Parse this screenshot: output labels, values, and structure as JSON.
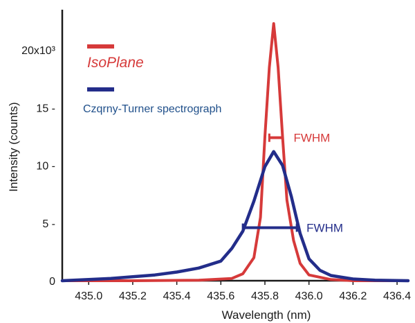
{
  "chart_data": {
    "type": "line",
    "title": "",
    "xlabel": "Wavelength (nm)",
    "ylabel": "Intensity (counts)",
    "xlim": [
      434.88,
      436.45
    ],
    "ylim": [
      0,
      23500
    ],
    "x_ticks": [
      {
        "value": 435.0,
        "label": "435.0"
      },
      {
        "value": 435.2,
        "label": "435.2"
      },
      {
        "value": 435.4,
        "label": "435.4"
      },
      {
        "value": 435.6,
        "label": "435.6"
      },
      {
        "value": 435.8,
        "label": "435.8"
      },
      {
        "value": 436.0,
        "label": "436.0"
      },
      {
        "value": 436.2,
        "label": "436.2"
      },
      {
        "value": 436.4,
        "label": "436.4"
      }
    ],
    "y_ticks": [
      {
        "value": 0,
        "label": "0"
      },
      {
        "value": 5000,
        "label": "5 -"
      },
      {
        "value": 10000,
        "label": "10 -"
      },
      {
        "value": 15000,
        "label": "15 -"
      },
      {
        "value": 20000,
        "label": "20x10³"
      }
    ],
    "grid": false,
    "legend_position": "top-left",
    "series": [
      {
        "name": "IsoPlane",
        "color": "#d63a3a",
        "x": [
          434.88,
          435.2,
          435.5,
          435.65,
          435.7,
          435.75,
          435.78,
          435.8,
          435.82,
          435.84,
          435.86,
          435.88,
          435.9,
          435.93,
          435.96,
          436.0,
          436.1,
          436.2,
          436.45
        ],
        "y": [
          0,
          0,
          50,
          200,
          600,
          2000,
          5500,
          12500,
          18500,
          22300,
          18500,
          12500,
          7000,
          3500,
          1500,
          500,
          100,
          0,
          0
        ]
      },
      {
        "name": "Czqrny-Turner spectrograph",
        "color": "#232d8a",
        "x": [
          434.88,
          435.0,
          435.1,
          435.2,
          435.3,
          435.4,
          435.5,
          435.6,
          435.65,
          435.7,
          435.75,
          435.8,
          435.84,
          435.88,
          435.92,
          435.96,
          436.0,
          436.05,
          436.1,
          436.2,
          436.3,
          436.45
        ],
        "y": [
          0,
          100,
          200,
          350,
          500,
          750,
          1100,
          1700,
          2800,
          4300,
          6900,
          9900,
          11200,
          10000,
          7300,
          4100,
          1900,
          900,
          450,
          150,
          50,
          0
        ]
      }
    ],
    "annotations": [
      {
        "text": "FWHM",
        "series": "IsoPlane",
        "x_start": 435.82,
        "x_end": 435.88,
        "y": 12400
      },
      {
        "text": "FWHM",
        "series": "Czqrny-Turner spectrograph",
        "x_start": 435.7,
        "x_end": 435.945,
        "y": 4600
      }
    ]
  }
}
